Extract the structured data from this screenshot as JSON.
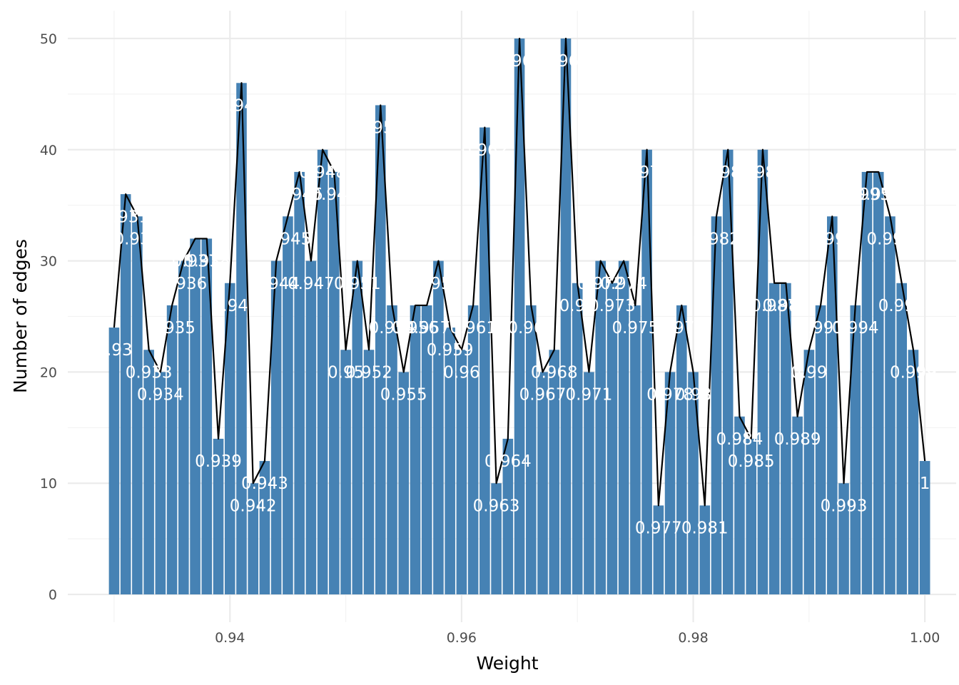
{
  "chart_data": {
    "type": "bar",
    "xlabel": "Weight",
    "ylabel": "Number of edges",
    "xlim": [
      0.926,
      1.0027
    ],
    "ylim": [
      -2.5,
      52.5
    ],
    "x_ticks": [
      0.94,
      0.96,
      0.98,
      1.0
    ],
    "x_tick_labels": [
      "0.94",
      "0.96",
      "0.98",
      "1.00"
    ],
    "y_ticks": [
      0,
      10,
      20,
      30,
      40,
      50
    ],
    "y_tick_labels": [
      "0",
      "10",
      "20",
      "30",
      "40",
      "50"
    ],
    "grid": true,
    "bar_color": "#4682B4",
    "line_color": "#000000",
    "overlay": "line through bar tops",
    "categories": [
      "0.93",
      "0.931",
      "0.932",
      "0.933",
      "0.934",
      "0.935",
      "0.936",
      "0.937",
      "0.938",
      "0.939",
      "0.94",
      "0.941",
      "0.942",
      "0.943",
      "0.944",
      "0.945",
      "0.946",
      "0.947",
      "0.948",
      "0.949",
      "0.95",
      "0.951",
      "0.952",
      "0.953",
      "0.954",
      "0.955",
      "0.956",
      "0.957",
      "0.958",
      "0.959",
      "0.96",
      "0.961",
      "0.962",
      "0.963",
      "0.964",
      "0.965",
      "0.966",
      "0.967",
      "0.968",
      "0.969",
      "0.97",
      "0.971",
      "0.972",
      "0.973",
      "0.974",
      "0.975",
      "0.976",
      "0.977",
      "0.978",
      "0.979",
      "0.98",
      "0.981",
      "0.982",
      "0.983",
      "0.984",
      "0.985",
      "0.986",
      "0.987",
      "0.988",
      "0.989",
      "0.99",
      "0.991",
      "0.992",
      "0.993",
      "0.994",
      "0.995",
      "0.996",
      "0.997",
      "0.998",
      "0.999",
      "1"
    ],
    "values": [
      24,
      36,
      34,
      22,
      20,
      26,
      30,
      32,
      32,
      14,
      28,
      46,
      10,
      12,
      30,
      34,
      38,
      30,
      40,
      38,
      22,
      30,
      22,
      44,
      26,
      20,
      26,
      26,
      30,
      24,
      22,
      26,
      42,
      10,
      14,
      50,
      26,
      20,
      22,
      50,
      28,
      20,
      30,
      28,
      30,
      26,
      40,
      8,
      20,
      26,
      20,
      8,
      34,
      40,
      16,
      14,
      40,
      28,
      28,
      16,
      22,
      26,
      34,
      10,
      26,
      38,
      38,
      34,
      28,
      22,
      12
    ]
  }
}
